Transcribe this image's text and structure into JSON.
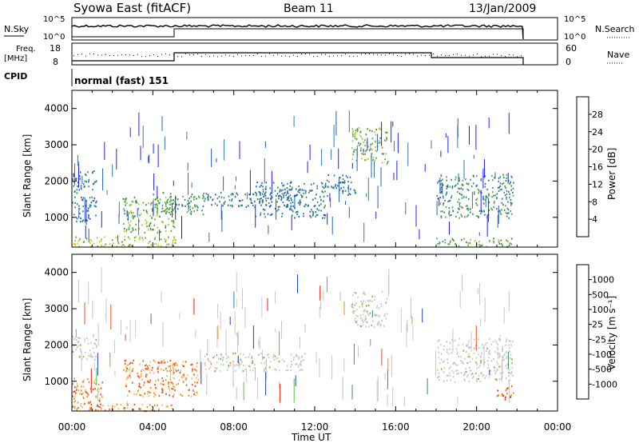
{
  "header": {
    "station": "Syowa East (fitACF)",
    "beam": "Beam 11",
    "date": "13/Jan/2009"
  },
  "strip_labels": {
    "nsky": "N.Sky",
    "nsearch": "N.Search",
    "freq_line1": "Freq.",
    "freq_line2": "[MHz]",
    "nave": "Nave",
    "cpid": "CPID",
    "cpid_value": "normal (fast) 151"
  },
  "strip_ticks": {
    "nsky_left": [
      "10^5",
      "10^0"
    ],
    "nsky_right": [
      "10^5",
      "10^0"
    ],
    "freq_left": [
      "18",
      "8"
    ],
    "nave_right": [
      "60",
      "0"
    ]
  },
  "chart_data": [
    {
      "type": "heatmap",
      "name": "power-panel",
      "ylabel": "Slant Range [km]",
      "xlabel": "",
      "x_ticks": [
        "00:00",
        "04:00",
        "08:00",
        "12:00",
        "16:00",
        "20:00",
        "00:00"
      ],
      "y_ticks": [
        1000,
        2000,
        3000,
        4000
      ],
      "ylim": [
        180,
        4500
      ],
      "xlim_hours": [
        0,
        24
      ],
      "colorbar": {
        "label": "Power [dB]",
        "ticks": [
          "28",
          "24",
          "20",
          "16",
          "12",
          "8",
          "4"
        ],
        "colors": [
          "#2020ff",
          "#2060c0",
          "#2e7ba8",
          "#3a8f5a",
          "#5aaa3a",
          "#a9c63a",
          "#e8c21a",
          "#f08a10",
          "#e85a10",
          "#e81a10"
        ]
      },
      "echo_regions": [
        {
          "t0": 0.0,
          "t1": 1.2,
          "r0": 900,
          "r1": 2300,
          "level": 2
        },
        {
          "t0": 0.0,
          "t1": 5.2,
          "r0": 200,
          "r1": 500,
          "level": 5
        },
        {
          "t0": 2.5,
          "t1": 5.2,
          "r0": 600,
          "r1": 1600,
          "level": 4
        },
        {
          "t0": 4.0,
          "t1": 6.5,
          "r0": 1100,
          "r1": 1700,
          "level": 3
        },
        {
          "t0": 6.5,
          "t1": 11.5,
          "r0": 1300,
          "r1": 1700,
          "level": 2
        },
        {
          "t0": 9.0,
          "t1": 12.5,
          "r0": 1000,
          "r1": 2000,
          "level": 2
        },
        {
          "t0": 13.8,
          "t1": 15.6,
          "r0": 2500,
          "r1": 3500,
          "level": 4
        },
        {
          "t0": 12.5,
          "t1": 14.0,
          "r0": 1600,
          "r1": 2200,
          "level": 2
        },
        {
          "t0": 18.0,
          "t1": 21.8,
          "r0": 1000,
          "r1": 2200,
          "level": 3
        },
        {
          "t0": 18.0,
          "t1": 21.8,
          "r0": 200,
          "r1": 450,
          "level": 4
        }
      ]
    },
    {
      "type": "heatmap",
      "name": "velocity-panel",
      "ylabel": "Slant Range [km]",
      "xlabel": "Time UT",
      "x_ticks": [
        "00:00",
        "04:00",
        "08:00",
        "12:00",
        "16:00",
        "20:00",
        "00:00"
      ],
      "y_ticks": [
        1000,
        2000,
        3000,
        4000
      ],
      "ylim": [
        180,
        4500
      ],
      "xlim_hours": [
        0,
        24
      ],
      "colorbar": {
        "label": "Velocity [m s⁻¹]",
        "ticks": [
          "1000",
          "500",
          "100",
          "25",
          "-25",
          "-100",
          "-500",
          "-1000"
        ],
        "colors": [
          "#e81a10",
          "#e8501a",
          "#f08a10",
          "#f0b860",
          "#c8c8c8",
          "#c0c0c0",
          "#5ac03a",
          "#3a8f5a",
          "#2e7ba8",
          "#2040c0"
        ]
      },
      "echo_regions": [
        {
          "t0": 0.0,
          "t1": 1.5,
          "r0": 200,
          "r1": 1100,
          "level": 2
        },
        {
          "t0": 2.5,
          "t1": 6.3,
          "r0": 600,
          "r1": 1600,
          "level": 2
        },
        {
          "t0": 0.0,
          "t1": 5.0,
          "r0": 200,
          "r1": 400,
          "level": 2
        },
        {
          "t0": 6.5,
          "t1": 11.5,
          "r0": 1300,
          "r1": 1800,
          "level": 4
        },
        {
          "t0": 0.0,
          "t1": 1.2,
          "r0": 1600,
          "r1": 2300,
          "level": 4
        },
        {
          "t0": 13.8,
          "t1": 15.6,
          "r0": 2500,
          "r1": 3500,
          "level": 4
        },
        {
          "t0": 18.0,
          "t1": 21.8,
          "r0": 1000,
          "r1": 2200,
          "level": 4
        },
        {
          "t0": 21.0,
          "t1": 21.8,
          "r0": 500,
          "r1": 900,
          "level": 1
        }
      ]
    }
  ],
  "time_axis_label": "Time UT"
}
